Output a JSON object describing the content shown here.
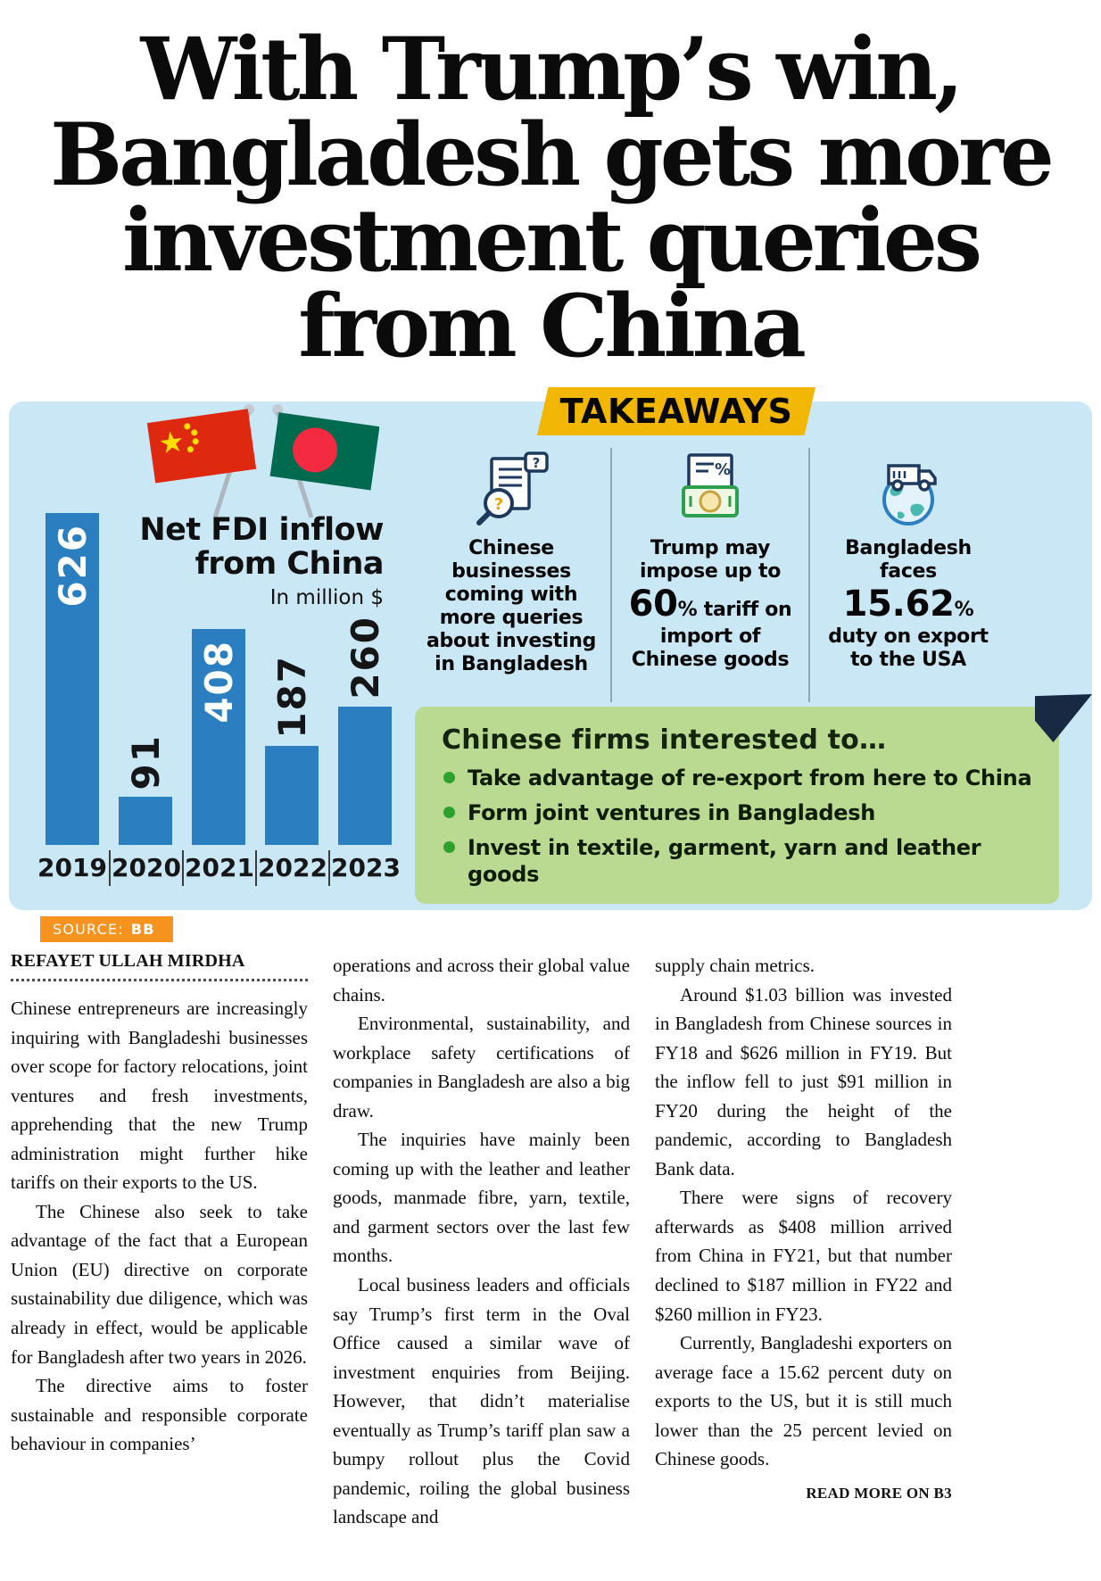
{
  "headline": {
    "lines": [
      "With Trump’s win,",
      "Bangladesh gets more",
      "investment queries",
      "from China"
    ]
  },
  "infographic": {
    "chart_title": {
      "line1": "Net FDI inflow",
      "line2": "from China",
      "unit": "In million $"
    },
    "takeaways": {
      "banner": "TAKEAWAYS",
      "items": [
        {
          "text": "Chinese businesses coming with more queries about investing in Bangladesh"
        },
        {
          "pre": "Trump may impose up to ",
          "big": "60",
          "post": "% tariff on import of Chinese goods"
        },
        {
          "pre": "Bangladesh faces ",
          "big": "15.62",
          "post": "% duty on export to the USA"
        }
      ]
    },
    "interest": {
      "title": "Chinese firms interested to…",
      "bullets": [
        "Take advantage of re-export from here to China",
        "Form joint ventures in Bangladesh",
        "Invest in textile, garment, yarn and leather goods"
      ]
    },
    "source": {
      "label": "SOURCE:",
      "value": "BB"
    }
  },
  "article": {
    "byline": "REFAYET ULLAH MIRDHA",
    "columns": [
      [
        "Chinese entrepreneurs are increasingly inquiring with Bangladeshi businesses over scope for factory relocations, joint ventures and fresh investments, apprehending that the new Trump administration might further hike tariffs on their exports to the US.",
        "The Chinese also seek to take advantage of the fact that a European Union (EU) directive on corporate sustainability due diligence, which was already in effect, would be applicable for Bangladesh after two years in 2026.",
        "The directive aims to foster sustainable and responsible corporate behaviour in companies’"
      ],
      [
        "operations and across their global value chains.",
        "Environmental, sustainability, and workplace safety certifications of companies in Bangladesh are also a big draw.",
        "The inquiries have mainly been coming up with the leather and leather goods, manmade fibre, yarn, textile, and garment sectors over the last few months.",
        "Local business leaders and officials say Trump’s first term in the Oval Office caused a similar wave of investment enquiries from Beijing. However, that didn’t materialise eventually as Trump’s tariff plan saw a bumpy rollout plus the Covid pandemic, roiling the global business landscape and"
      ],
      [
        "supply chain metrics.",
        "Around $1.03 billion was invested in Bangladesh from Chinese sources in FY18 and $626 million in FY19. But the inflow fell to just $91 million in FY20 during the height of the pandemic, according to Bangladesh Bank data.",
        "There were signs of recovery afterwards as $408 million arrived from China in FY21, but that number declined to $187 million in FY22 and $260 million in FY23.",
        "Currently, Bangladeshi exporters on average face a 15.62 percent duty on exports to the US, but it is still much lower than the 25 percent levied on Chinese goods."
      ]
    ],
    "read_more": "READ MORE ON B3"
  },
  "chart_data": {
    "type": "bar",
    "title": "Net FDI inflow from China",
    "unit": "In million $",
    "categories": [
      "2019",
      "2020",
      "2021",
      "2022",
      "2023"
    ],
    "values": [
      626,
      91,
      408,
      187,
      260
    ],
    "ylim": [
      0,
      626
    ],
    "grid": false,
    "bar_color": "#2b7fc0",
    "value_labels_rotated": true,
    "inside_label_threshold": 300,
    "source": "BB"
  },
  "colors": {
    "panel_bg": "#cae7f5",
    "bar_blue": "#2b7fc0",
    "banner_yellow": "#f2b705",
    "interest_green_bg": "#b9da90",
    "bullet_green": "#2ca12c",
    "source_orange": "#f6921e",
    "accent_navy": "#182944"
  }
}
